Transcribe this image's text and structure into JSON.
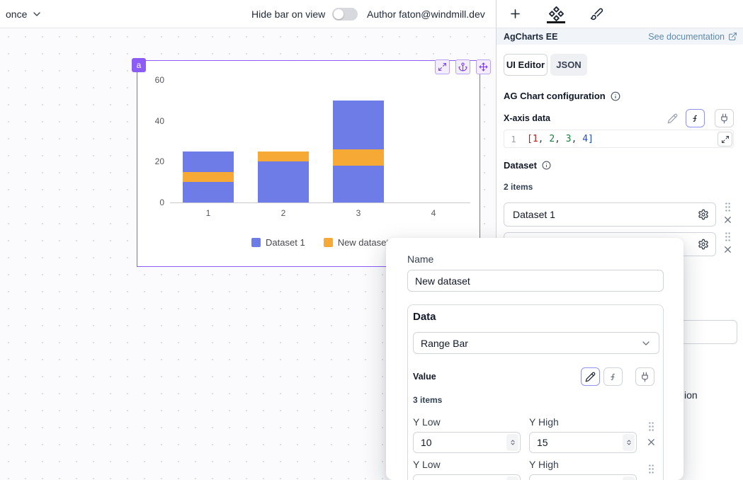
{
  "colors": {
    "accent_purple": "#8b5cf6",
    "series_blue": "#6d7ce6",
    "series_orange": "#f7a936",
    "doc_link_blue": "#5d89ae"
  },
  "topbar": {
    "schedule_label": "once",
    "hide_bar_label": "Hide bar on view",
    "author_label": "Author faton@windmill.dev"
  },
  "component": {
    "badge_label": "a"
  },
  "panel": {
    "header": {
      "title": "AgCharts EE",
      "doc_link_label": "See documentation"
    },
    "tabs": {
      "ui_editor": "UI Editor",
      "json": "JSON"
    },
    "config_title": "AG Chart configuration",
    "x_axis": {
      "label": "X-axis data",
      "line_number": "1",
      "tokens": [
        {
          "text": "[",
          "color": "#b91c1c"
        },
        {
          "text": "1",
          "color": "#b91c1c"
        },
        {
          "text": ", ",
          "color": "#374151"
        },
        {
          "text": "2",
          "color": "#15803d"
        },
        {
          "text": ", ",
          "color": "#374151"
        },
        {
          "text": "3",
          "color": "#15803d"
        },
        {
          "text": ", ",
          "color": "#374151"
        },
        {
          "text": "4",
          "color": "#1d4ed8"
        },
        {
          "text": "]",
          "color": "#1d4ed8"
        }
      ]
    },
    "dataset": {
      "label": "Dataset",
      "count_label": "2 items",
      "rows": [
        {
          "name": "Dataset 1"
        },
        {
          "name": "New dataset"
        }
      ]
    },
    "fragments": {
      "cutoff_label": "ion"
    }
  },
  "modal": {
    "name_label": "Name",
    "name_value": "New dataset",
    "data": {
      "title": "Data",
      "type_value": "Range Bar",
      "value_label": "Value",
      "count_label": "3 items",
      "rows": [
        {
          "y_low_label": "Y Low",
          "y_high_label": "Y High",
          "y_low": "10",
          "y_high": "15"
        },
        {
          "y_low_label": "Y Low",
          "y_high_label": "Y High",
          "y_low": "",
          "y_high": ""
        }
      ]
    }
  },
  "chart_data": {
    "type": "bar",
    "categories": [
      "1",
      "2",
      "3",
      "4"
    ],
    "series": [
      {
        "name": "Dataset 1",
        "type": "bar",
        "color": "#6d7ce6",
        "values": [
          25,
          20,
          50,
          null
        ]
      },
      {
        "name": "New dataset",
        "type": "range-bar",
        "color": "#f7a936",
        "ranges": [
          [
            10,
            15
          ],
          [
            20,
            25
          ],
          [
            18,
            26
          ],
          null
        ]
      }
    ],
    "title": "",
    "xlabel": "",
    "ylabel": "",
    "ylim": [
      0,
      60
    ],
    "yticks": [
      0,
      20,
      40,
      60
    ],
    "grid": false,
    "legend_position": "bottom"
  }
}
